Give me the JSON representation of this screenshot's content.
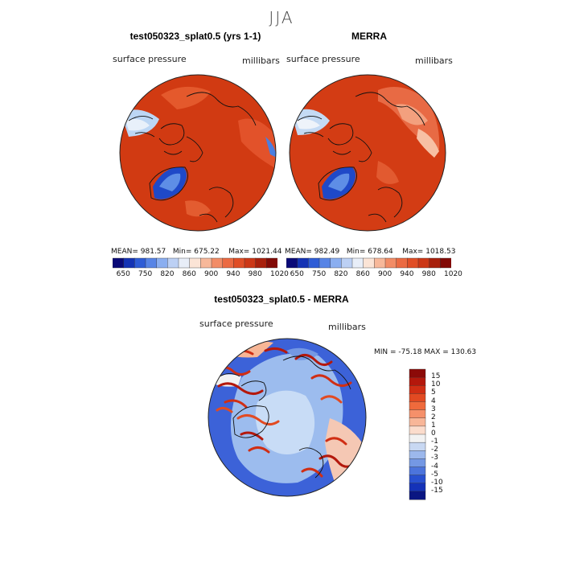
{
  "season": "JJA",
  "panels": {
    "left": {
      "title": "test050323_splat0.5 (yrs 1-1)",
      "variable": "surface pressure",
      "units": "millibars",
      "stats": {
        "mean_label": "MEAN=",
        "mean": "981.57",
        "min_label": "Min=",
        "min": "675.22",
        "max_label": "Max=",
        "max": "1021.44"
      }
    },
    "right": {
      "title": "MERRA",
      "variable": "surface pressure",
      "units": "millibars",
      "stats": {
        "mean_label": "MEAN=",
        "mean": "982.49",
        "min_label": "Min=",
        "min": "678.64",
        "max_label": "Max=",
        "max": "1018.53"
      }
    },
    "diff": {
      "title": "test050323_splat0.5 - MERRA",
      "variable": "surface pressure",
      "units": "millibars",
      "minmax": "MIN = -75.18 MAX = 130.63"
    }
  },
  "colorbar_top": {
    "tick_labels": [
      "650",
      "750",
      "820",
      "860",
      "900",
      "940",
      "980",
      "1020"
    ],
    "colors": [
      "#0a0a78",
      "#1433b4",
      "#2e5cd6",
      "#5784e6",
      "#8aaef0",
      "#bcd0f4",
      "#e8eef8",
      "#fbe4d6",
      "#f7b89a",
      "#f28c66",
      "#eb6a42",
      "#e04e26",
      "#cc3716",
      "#a8200c",
      "#820a06"
    ]
  },
  "colorbar_diff": {
    "tick_labels": [
      "15",
      "10",
      "5",
      "4",
      "3",
      "2",
      "1",
      "0",
      "-1",
      "-2",
      "-3",
      "-4",
      "-5",
      "-10",
      "-15"
    ],
    "colors": [
      "#8c0a08",
      "#b4180c",
      "#d02e14",
      "#e24a22",
      "#ef6a3c",
      "#f5906a",
      "#f8b698",
      "#fbdccc",
      "#f2f2f2",
      "#c8d8f2",
      "#9cb8ec",
      "#7498e4",
      "#4c74dc",
      "#2850d0",
      "#1432b8",
      "#0a1682"
    ]
  }
}
